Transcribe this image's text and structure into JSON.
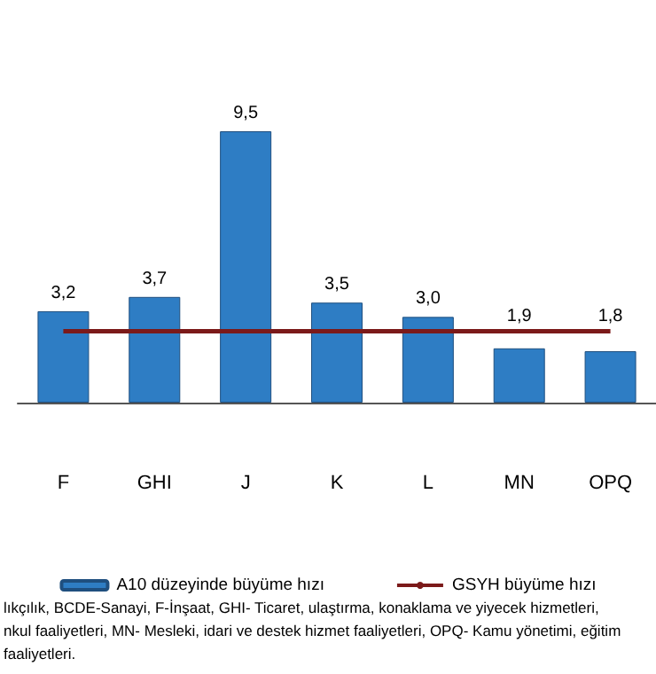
{
  "chart_data": {
    "type": "bar",
    "categories": [
      "F",
      "GHI",
      "J",
      "K",
      "L",
      "MN",
      "OPQ"
    ],
    "series": [
      {
        "name": "A10 düzeyinde büyüme hızı",
        "type": "bar",
        "color": "#2e7dc4",
        "values": [
          3.2,
          3.7,
          9.5,
          3.5,
          3.0,
          1.9,
          1.8
        ],
        "value_labels": [
          "3,2",
          "3,7",
          "9,5",
          "3,5",
          "3,0",
          "1,9",
          "1,8"
        ]
      },
      {
        "name": "GSYH büyüme hızı",
        "type": "line",
        "color": "#7b1a1a",
        "values": [
          2.5,
          2.5,
          2.5,
          2.5,
          2.5,
          2.5,
          2.5
        ]
      }
    ],
    "legend": "bottom",
    "annotations": [
      "lıkçılık, BCDE-Sanayi, F-İnşaat, GHI- Ticaret, ulaştırma, konaklama ve yiyecek hizmetleri,",
      "nkul faaliyetleri, MN- Mesleki, idari ve destek hizmet faaliyetleri, OPQ- Kamu yönetimi, eğitim",
      "faaliyetleri."
    ]
  }
}
